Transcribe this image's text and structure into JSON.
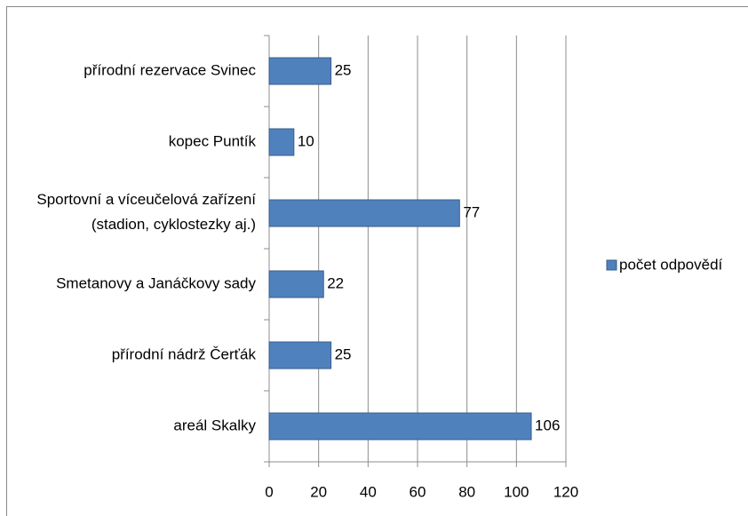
{
  "chart_data": {
    "type": "bar",
    "orientation": "horizontal",
    "categories": [
      "přírodní rezervace Svinec",
      "kopec Puntík",
      "Sportovní a víceučelová zařízení (stadion, cyklostezky aj.)",
      "Smetanovy a Janáčkovy sady",
      "přírodní nádrž Čerťák",
      "areál Skalky"
    ],
    "series": [
      {
        "name": "počet odpovědí",
        "color": "#4f81bd",
        "values": [
          25,
          10,
          77,
          22,
          25,
          106
        ]
      }
    ],
    "xlim": [
      0,
      120
    ],
    "xticks": [
      0,
      20,
      40,
      60,
      80,
      100,
      120
    ],
    "grid": true,
    "legend": "right"
  }
}
